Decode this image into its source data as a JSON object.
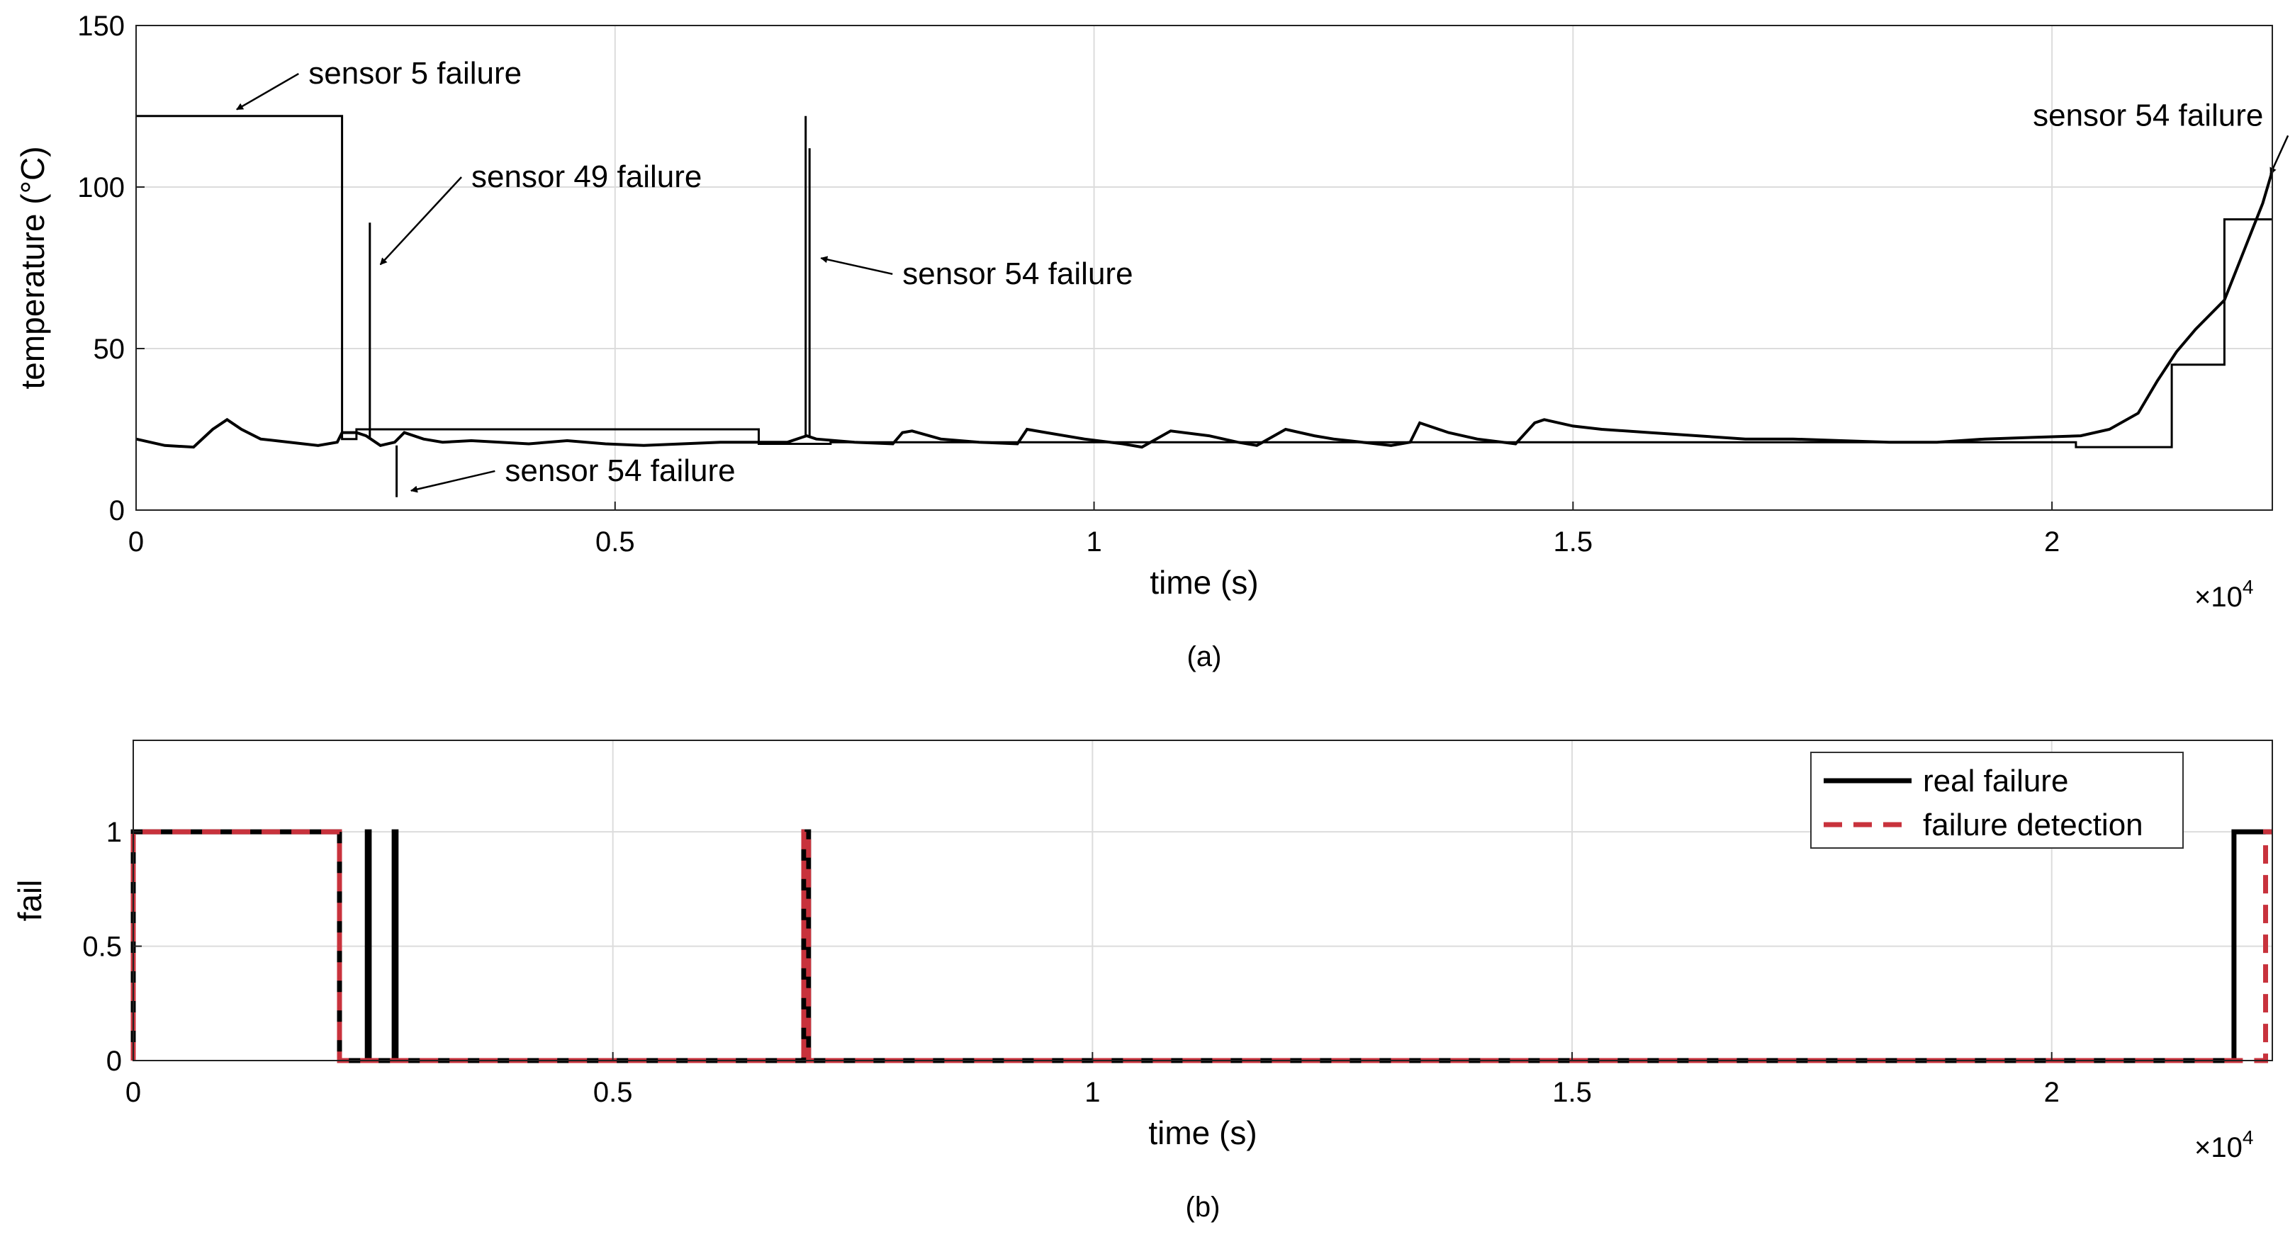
{
  "chart_data": [
    {
      "type": "line",
      "caption": "(a)",
      "xlabel": "time (s)",
      "ylabel": "temperature (°C)",
      "xlim": [
        0,
        22300
      ],
      "ylim": [
        0,
        150
      ],
      "x_multiplier_base": "×10",
      "x_multiplier_exp": "4",
      "xticks": [
        0,
        5000,
        10000,
        15000,
        20000
      ],
      "xtick_labels": [
        "0",
        "0.5",
        "1",
        "1.5",
        "2"
      ],
      "yticks": [
        0,
        50,
        100,
        150
      ],
      "ytick_labels": [
        "0",
        "50",
        "100",
        "150"
      ],
      "grid": true,
      "series": [
        {
          "color": "#000000",
          "x": [
            0,
            300,
            600,
            800,
            950,
            1100,
            1300,
            1600,
            1900,
            2100,
            2150,
            2300,
            2400,
            2550,
            2700,
            2800,
            3000,
            3200,
            3500,
            3800,
            4100,
            4500,
            4900,
            5300,
            5700,
            6100,
            6500,
            6800,
            6950,
            7000,
            7100,
            7500,
            7900,
            8000,
            8100,
            8400,
            8800,
            9200,
            9300,
            9500,
            9900,
            10300,
            10500,
            10800,
            11200,
            11500,
            11700,
            12000,
            12300,
            12500,
            12800,
            13100,
            13300,
            13400,
            13700,
            14000,
            14400,
            14600,
            14700,
            15000,
            15300,
            15800,
            16300,
            16800,
            17300,
            17800,
            18300,
            18800,
            19300,
            19800,
            20300,
            20600,
            20900,
            21100,
            21300,
            21500,
            21800,
            22000,
            22200,
            22300
          ],
          "y": [
            22,
            20,
            19.5,
            25,
            28,
            25,
            22,
            21,
            20,
            21,
            24,
            24,
            23,
            20,
            21,
            24,
            22,
            21,
            21.5,
            21,
            20.5,
            21.5,
            20.5,
            20,
            20.5,
            21,
            21,
            21,
            22.5,
            23,
            22,
            21,
            20.5,
            24,
            24.5,
            22,
            21,
            20.5,
            25,
            24,
            22,
            20.5,
            19.5,
            24.5,
            23,
            21,
            20,
            25,
            23,
            22,
            21,
            20,
            21,
            27,
            24,
            22,
            20.5,
            27,
            28,
            26,
            25,
            24,
            23,
            22,
            22,
            21.5,
            21,
            21,
            22,
            22.5,
            23,
            25,
            30,
            40,
            49,
            56,
            65,
            80,
            95,
            105
          ]
        },
        {
          "color": "#000000",
          "x": [
            0,
            2150,
            2150,
            2300,
            2300,
            6500,
            6500,
            7250,
            7250,
            20250,
            20250,
            21250,
            21250,
            21800,
            21800,
            22300
          ],
          "y": [
            122,
            122,
            22,
            22,
            25,
            25,
            20.5,
            20.5,
            21,
            21,
            19.5,
            19.5,
            45,
            45,
            90,
            90
          ]
        },
        {
          "color": "#000000",
          "x": [
            2440,
            2440,
            2440
          ],
          "y": [
            22,
            89,
            22
          ]
        },
        {
          "color": "#000000",
          "x": [
            2720,
            2720,
            2720
          ],
          "y": [
            20,
            4,
            20
          ]
        },
        {
          "color": "#000000",
          "x": [
            6990,
            6990,
            6990
          ],
          "y": [
            23,
            122,
            23
          ]
        },
        {
          "color": "#000000",
          "x": [
            7030,
            7030,
            7030
          ],
          "y": [
            23,
            112,
            23
          ]
        }
      ],
      "annotations": [
        {
          "text": "sensor 5 failure",
          "x": 1800,
          "y": 132,
          "target": [
            1050,
            124
          ]
        },
        {
          "text": "sensor 49 failure",
          "x": 3500,
          "y": 100,
          "target": [
            2550,
            76
          ]
        },
        {
          "text": "sensor 54 failure",
          "x": 8000,
          "y": 70,
          "target": [
            7150,
            78
          ]
        },
        {
          "text": "sensor 54 failure",
          "x": 3850,
          "y": 9,
          "target": [
            2870,
            6
          ]
        },
        {
          "text": "sensor 54 failure",
          "x": 19800,
          "y": 119,
          "target": [
            22280,
            104
          ]
        }
      ]
    },
    {
      "type": "line",
      "caption": "(b)",
      "xlabel": "time (s)",
      "ylabel": "fail",
      "xlim": [
        0,
        22300
      ],
      "ylim": [
        0,
        1.4
      ],
      "x_multiplier_base": "×10",
      "x_multiplier_exp": "4",
      "xticks": [
        0,
        5000,
        10000,
        15000,
        20000
      ],
      "xtick_labels": [
        "0",
        "0.5",
        "1",
        "1.5",
        "2"
      ],
      "yticks": [
        0,
        0.5,
        1
      ],
      "ytick_labels": [
        "0",
        "0.5",
        "1"
      ],
      "grid": true,
      "legend_position": "top-right",
      "series": [
        {
          "name": "real failure",
          "color": "#000000",
          "style": "solid",
          "x": [
            0,
            0,
            2150,
            2150,
            2440,
            2440,
            2460,
            2460,
            2720,
            2720,
            2740,
            2740,
            6990,
            6990,
            7040,
            7040,
            21900,
            21900,
            22300
          ],
          "y": [
            0,
            1,
            1,
            0,
            0,
            1,
            1,
            0,
            0,
            1,
            1,
            0,
            0,
            1,
            1,
            0,
            0,
            1,
            1
          ]
        },
        {
          "name": "failure detection",
          "color": "#c8323c",
          "style": "dashed",
          "x": [
            0,
            0,
            2150,
            2150,
            6990,
            6990,
            7040,
            7040,
            22230,
            22230,
            22300
          ],
          "y": [
            0,
            1,
            1,
            0,
            0,
            1,
            1,
            0,
            0,
            1,
            1
          ]
        }
      ]
    }
  ]
}
